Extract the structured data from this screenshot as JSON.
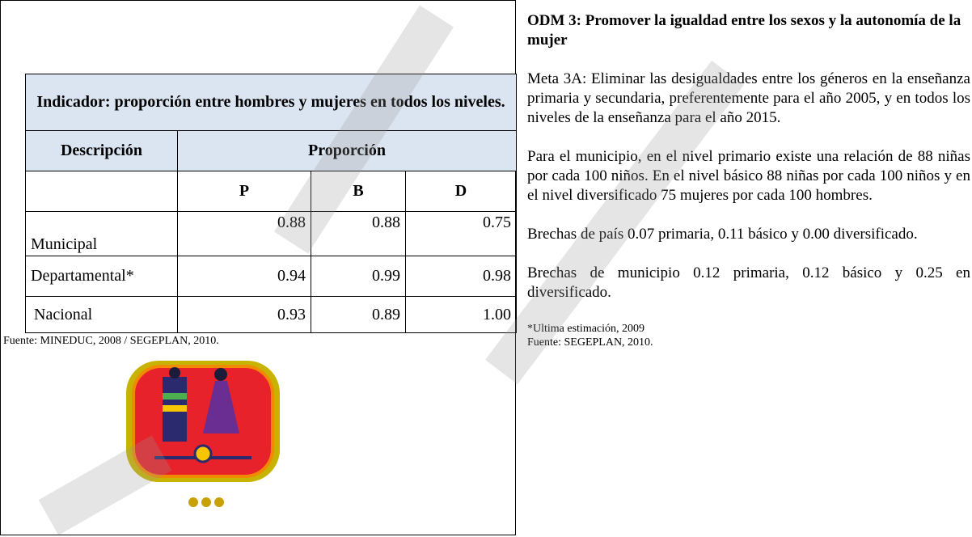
{
  "table": {
    "title": "Indicador: proporción entre hombres y mujeres en todos los niveles.",
    "headers": [
      "Descripción",
      "Proporción"
    ],
    "subheaders": [
      "P",
      "B",
      "D"
    ],
    "rows": [
      [
        "Municipal",
        "0.88",
        "0.88",
        "0.75"
      ],
      [
        "Departamental*",
        "0.94",
        "0.99",
        "0.98"
      ],
      [
        "Nacional",
        "0.93",
        "0.89",
        "1.00"
      ]
    ]
  },
  "table_source": "Fuente: MINEDUC, 2008 / SEGEPLAN, 2010.",
  "section": {
    "title": "ODM 3: Promover la igualdad entre los sexos y la autonomía de la mujer",
    "paragraphs": [
      "Meta 3A: Eliminar las desigualdades entre los géneros en la enseñanza primaria y secundaria, preferentemente para el año 2005, y en todos los niveles de la enseñanza para el año 2015.",
      "Para el municipio, en el nivel primario existe una relación de 88 niñas por cada 100 niños.  En el nivel básico 88 niñas por cada 100 niños y en el nivel diversificado 75 mujeres por cada 100 hombres.",
      "Brechas de país 0.07 primaria, 0.11 básico y 0.00 diversificado.",
      "Brechas de municipio 0.12 primaria, 0.12 básico y 0.25 en diversificado."
    ],
    "notes": [
      "*Ultima estimación, 2009",
      "Fuente: SEGEPLAN, 2010."
    ]
  }
}
